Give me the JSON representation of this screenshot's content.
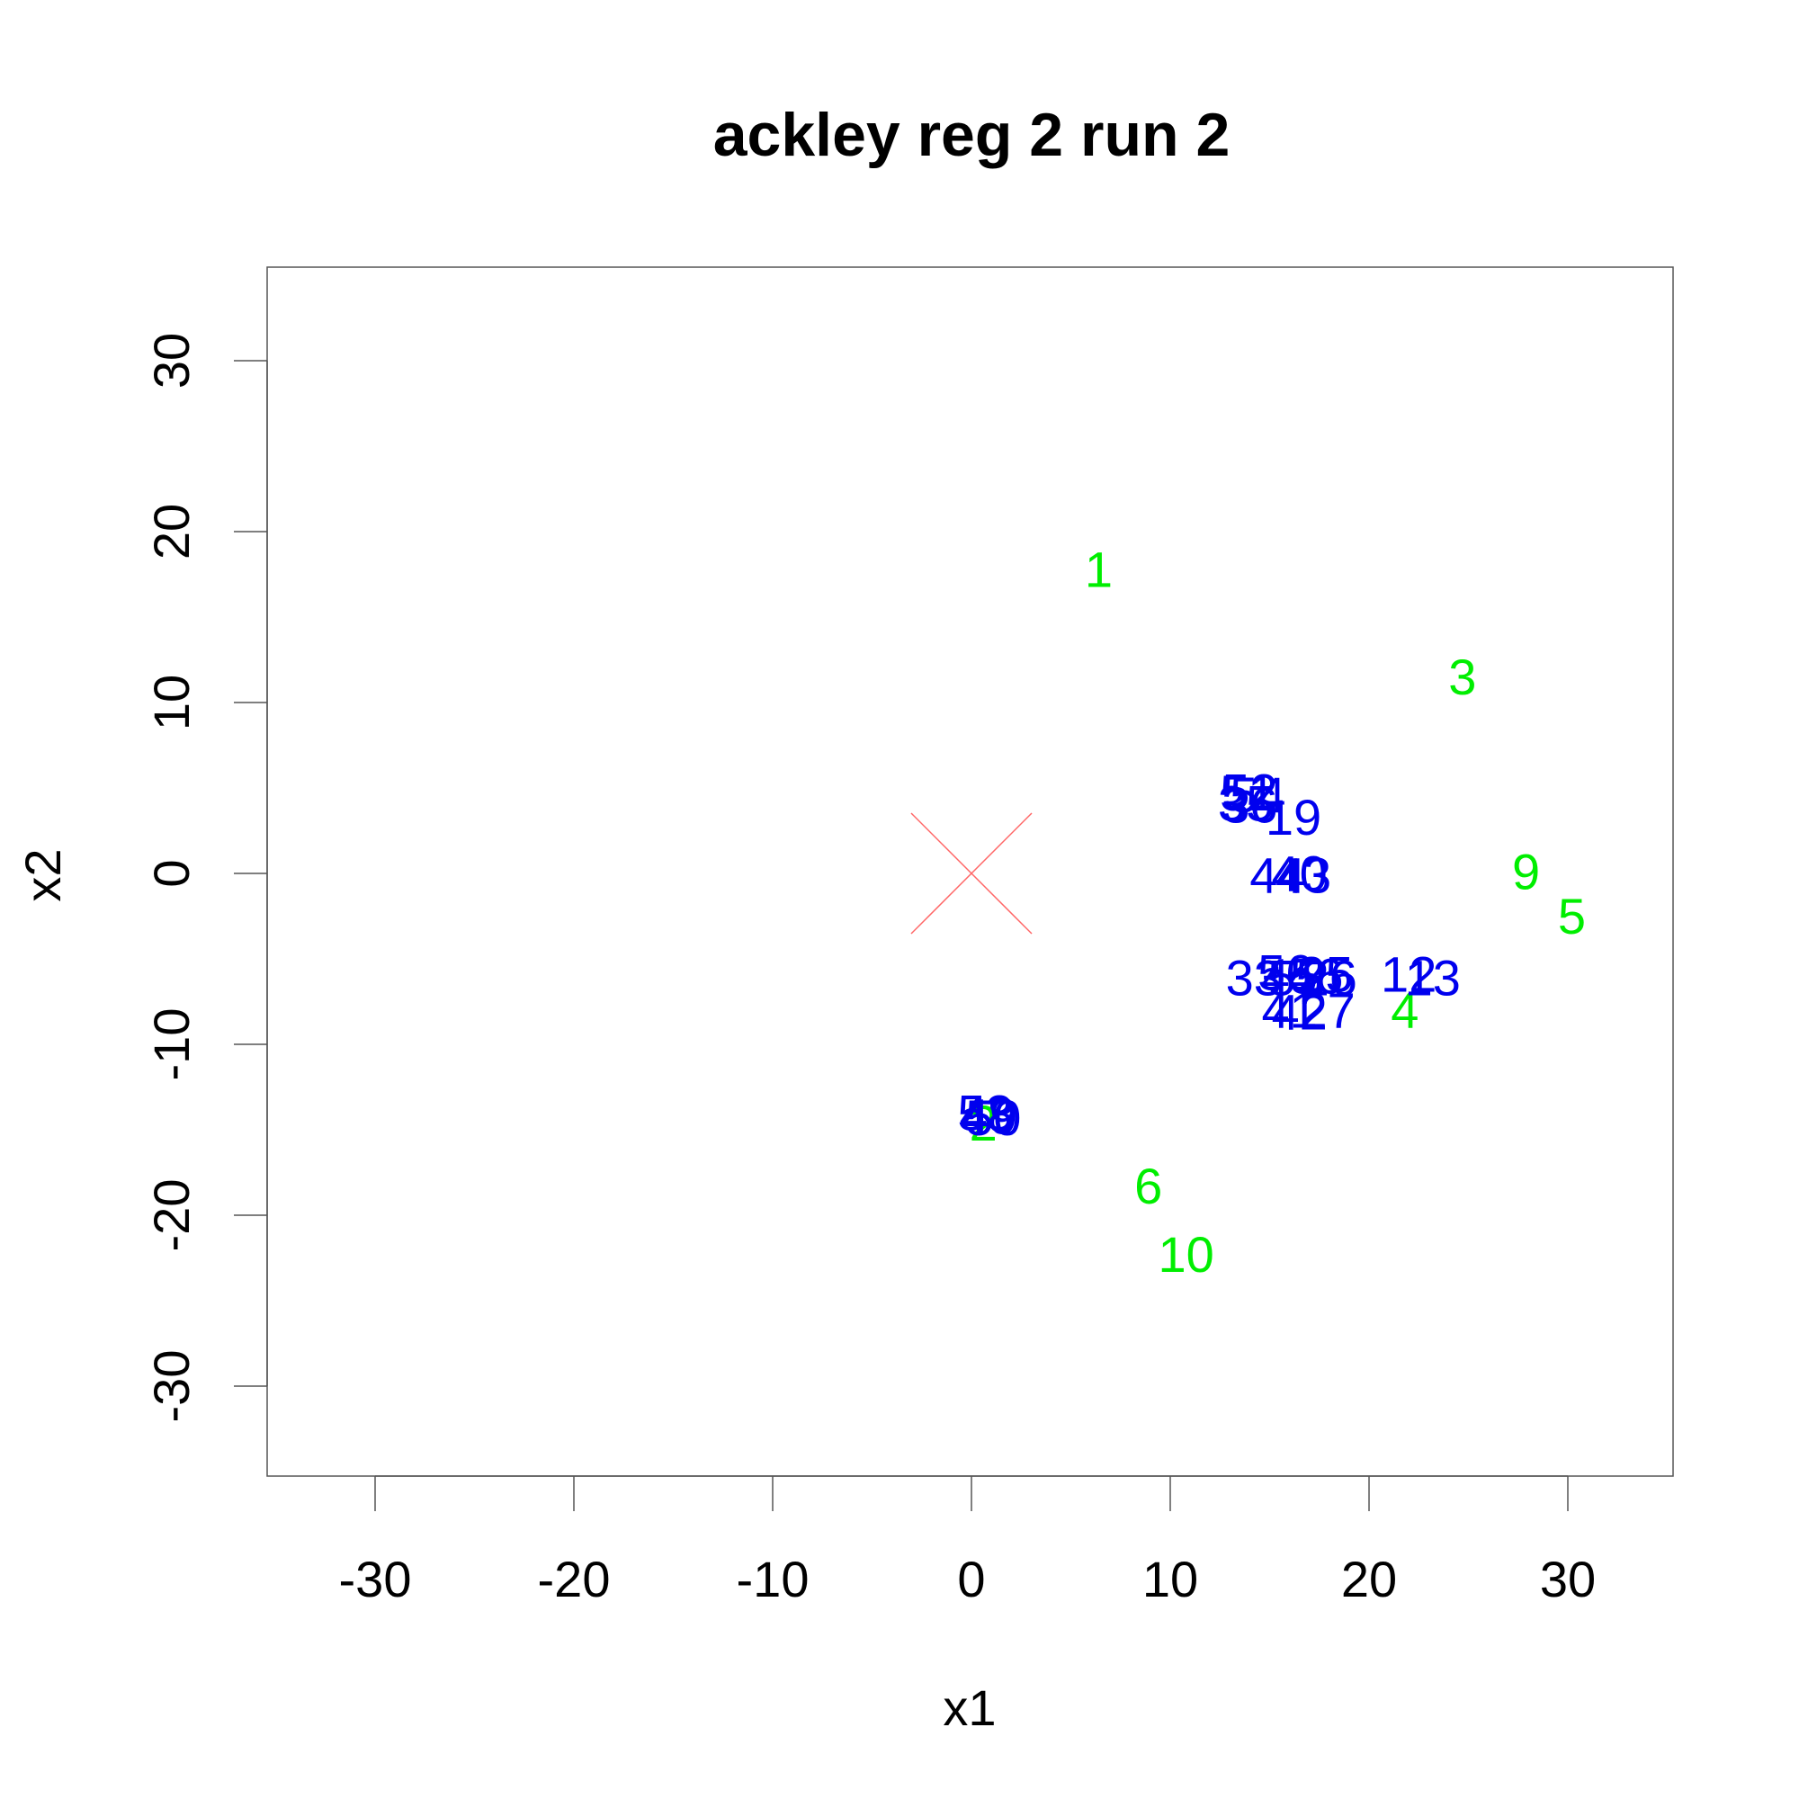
{
  "chart_data": {
    "type": "scatter",
    "title": "ackley reg 2 run 2",
    "xlabel": "x1",
    "ylabel": "x2",
    "xlim": [
      -35,
      35
    ],
    "ylim": [
      -35,
      35
    ],
    "xticks": [
      -30,
      -20,
      -10,
      0,
      10,
      20,
      30
    ],
    "yticks": [
      -30,
      -20,
      -10,
      0,
      10,
      20,
      30
    ],
    "grid": false,
    "optimum": {
      "x": 0,
      "y": 0,
      "marker": "cross",
      "color": "#ff6666"
    },
    "series": [
      {
        "color": "#00ee00",
        "points": [
          {
            "label": "1",
            "x": 6.4,
            "y": 17.8
          },
          {
            "label": "2",
            "x": 0.6,
            "y": -14.6
          },
          {
            "label": "3",
            "x": 24.7,
            "y": 11.5
          },
          {
            "label": "4",
            "x": 21.8,
            "y": -8.0
          },
          {
            "label": "5",
            "x": 30.2,
            "y": -2.5
          },
          {
            "label": "6",
            "x": 8.9,
            "y": -18.3
          },
          {
            "label": "9",
            "x": 27.9,
            "y": 0.1
          },
          {
            "label": "10",
            "x": 10.8,
            "y": -22.3
          }
        ]
      },
      {
        "color": "#0000ee",
        "points": [
          {
            "label": "12",
            "x": 22.0,
            "y": -5.9
          },
          {
            "label": "13",
            "x": 23.2,
            "y": -6.1
          },
          {
            "label": "19",
            "x": 16.2,
            "y": 3.3
          },
          {
            "label": "25",
            "x": 17.8,
            "y": -5.9
          },
          {
            "label": "26",
            "x": 18.0,
            "y": -6.1
          },
          {
            "label": "27",
            "x": 17.9,
            "y": -8.0
          },
          {
            "label": "33",
            "x": 14.2,
            "y": -6.1
          },
          {
            "label": "35",
            "x": 13.8,
            "y": 4.1
          },
          {
            "label": "36",
            "x": 14.0,
            "y": 4.0
          },
          {
            "label": "40",
            "x": 16.5,
            "y": 0.0
          },
          {
            "label": "41",
            "x": 16.0,
            "y": -8.0
          },
          {
            "label": "42",
            "x": 16.5,
            "y": -8.1
          },
          {
            "label": "43",
            "x": 16.7,
            "y": -0.1
          },
          {
            "label": "44",
            "x": 15.4,
            "y": -0.1
          },
          {
            "label": "45",
            "x": 16.0,
            "y": -6.0
          },
          {
            "label": "46",
            "x": 17.3,
            "y": -6.0
          },
          {
            "label": "48",
            "x": 0.8,
            "y": -14.1
          },
          {
            "label": "49",
            "x": 0.9,
            "y": -14.2
          },
          {
            "label": "50",
            "x": 1.1,
            "y": -14.3
          },
          {
            "label": "51",
            "x": 13.9,
            "y": 4.7
          },
          {
            "label": "52",
            "x": 14.0,
            "y": 4.8
          },
          {
            "label": "53",
            "x": 0.7,
            "y": -14.0
          },
          {
            "label": "54",
            "x": 14.4,
            "y": 4.6
          },
          {
            "label": "55",
            "x": 16.3,
            "y": -6.1
          },
          {
            "label": "56",
            "x": 15.8,
            "y": -5.8
          }
        ]
      }
    ]
  }
}
